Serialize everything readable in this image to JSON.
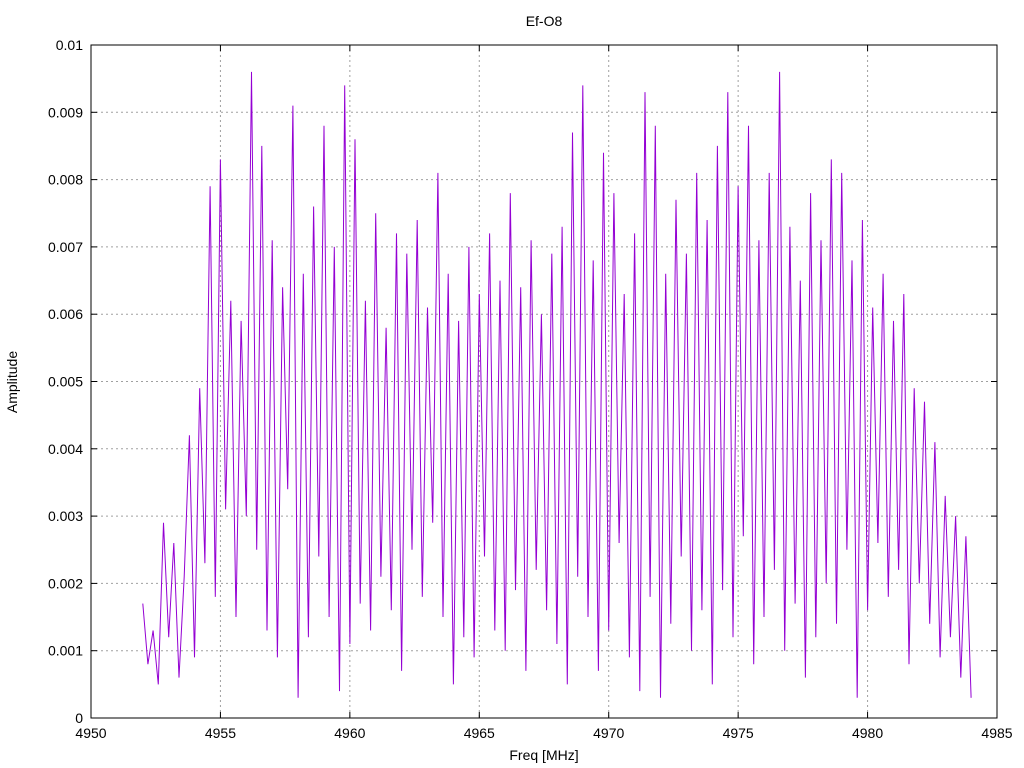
{
  "chart_data": {
    "type": "line",
    "title": "Ef-O8",
    "xlabel": "Freq [MHz]",
    "ylabel": "Amplitude",
    "xlim": [
      4950,
      4985
    ],
    "ylim": [
      0,
      0.01
    ],
    "grid": true,
    "xticks": [
      "4950",
      "4955",
      "4960",
      "4965",
      "4970",
      "4975",
      "4980",
      "4985"
    ],
    "xtick_values": [
      4950,
      4955,
      4960,
      4965,
      4970,
      4975,
      4980,
      4985
    ],
    "yticks": [
      "0",
      "0.001",
      "0.002",
      "0.003",
      "0.004",
      "0.005",
      "0.006",
      "0.007",
      "0.008",
      "0.009",
      "0.01"
    ],
    "ytick_values": [
      0,
      0.001,
      0.002,
      0.003,
      0.004,
      0.005,
      0.006,
      0.007,
      0.008,
      0.009,
      0.01
    ],
    "series": [
      {
        "name": "Amplitude",
        "color": "#9400d3",
        "x_start": 4952.0,
        "x_step": 0.2,
        "values": [
          0.0017,
          0.0008,
          0.0013,
          0.0005,
          0.0029,
          0.0012,
          0.0026,
          0.0006,
          0.0021,
          0.0042,
          0.0009,
          0.0049,
          0.0023,
          0.0079,
          0.0018,
          0.0083,
          0.0031,
          0.0062,
          0.0015,
          0.0059,
          0.003,
          0.0096,
          0.0025,
          0.0085,
          0.0013,
          0.0071,
          0.0009,
          0.0064,
          0.0034,
          0.0091,
          0.0003,
          0.0066,
          0.0012,
          0.0076,
          0.0024,
          0.0088,
          0.0015,
          0.007,
          0.0004,
          0.0094,
          0.0011,
          0.0086,
          0.0017,
          0.0062,
          0.0013,
          0.0075,
          0.0021,
          0.0058,
          0.0016,
          0.0072,
          0.0007,
          0.0069,
          0.0025,
          0.0074,
          0.0018,
          0.0061,
          0.0029,
          0.0081,
          0.0015,
          0.0066,
          0.0005,
          0.0059,
          0.0012,
          0.007,
          0.0009,
          0.0063,
          0.0024,
          0.0072,
          0.0013,
          0.0065,
          0.001,
          0.0078,
          0.0019,
          0.0064,
          0.0007,
          0.0071,
          0.0022,
          0.006,
          0.0016,
          0.0069,
          0.0011,
          0.0073,
          0.0005,
          0.0087,
          0.0021,
          0.0094,
          0.0015,
          0.0068,
          0.0007,
          0.0084,
          0.0013,
          0.0078,
          0.0026,
          0.0063,
          0.0009,
          0.0072,
          0.0004,
          0.0093,
          0.0018,
          0.0088,
          0.0003,
          0.0066,
          0.0014,
          0.0077,
          0.0024,
          0.0069,
          0.001,
          0.0081,
          0.0016,
          0.0074,
          0.0005,
          0.0085,
          0.0019,
          0.0093,
          0.0012,
          0.0079,
          0.0027,
          0.0088,
          0.0008,
          0.0071,
          0.0015,
          0.0081,
          0.0022,
          0.0096,
          0.001,
          0.0073,
          0.0017,
          0.0065,
          0.0006,
          0.0078,
          0.0012,
          0.0071,
          0.002,
          0.0083,
          0.0014,
          0.0081,
          0.0025,
          0.0068,
          0.0003,
          0.0074,
          0.0016,
          0.0061,
          0.0026,
          0.0066,
          0.0018,
          0.0059,
          0.0022,
          0.0063,
          0.0008,
          0.0049,
          0.002,
          0.0047,
          0.0014,
          0.0041,
          0.0009,
          0.0033,
          0.0012,
          0.003,
          0.0006,
          0.0027,
          0.0003
        ]
      }
    ]
  }
}
